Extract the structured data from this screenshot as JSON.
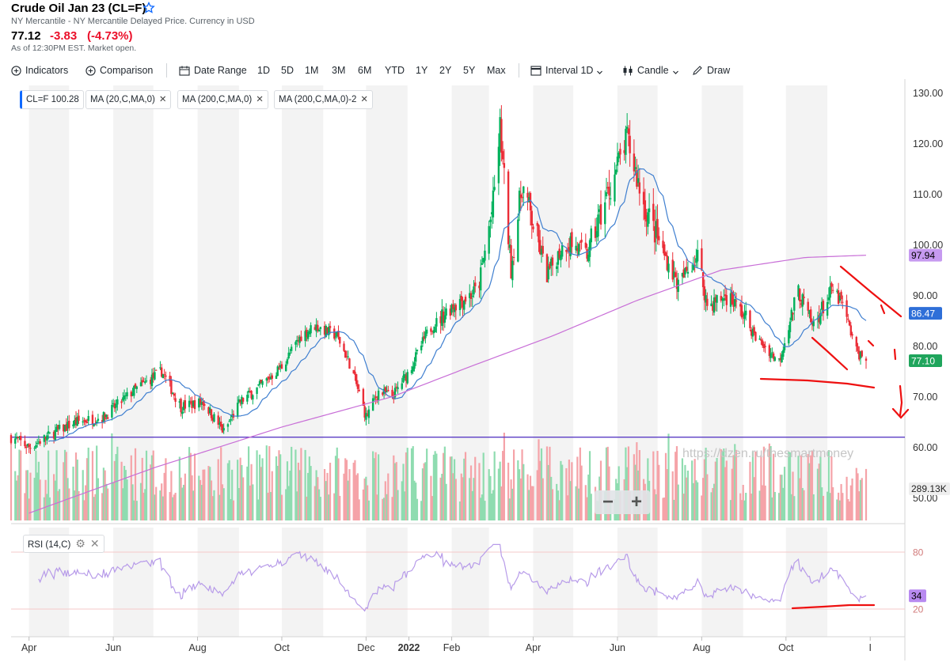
{
  "header": {
    "title": "Crude Oil Jan 23 (CL=F)",
    "exchange": "NY Mercantile - NY Mercantile Delayed Price. Currency in USD",
    "price": "77.12",
    "change": "-3.83",
    "change_pct": "(-4.73%)",
    "as_of": "As of 12:30PM EST. Market open."
  },
  "toolbar": {
    "indicators": "Indicators",
    "comparison": "Comparison",
    "date_range": "Date Range",
    "ranges": [
      "1D",
      "5D",
      "1M",
      "3M",
      "6M",
      "YTD",
      "1Y",
      "2Y",
      "5Y",
      "Max"
    ],
    "interval": "Interval",
    "interval_value": "1D",
    "chart_type": "Candle",
    "draw": "Draw"
  },
  "legend": {
    "symbol": "CL=F",
    "symbol_value": "100.28",
    "ma20": "MA (20,C,MA,0)",
    "ma200": "MA (200,C,MA,0)",
    "ma200_2": "MA (200,C,MA,0)-2",
    "rsi": "RSI (14,C)"
  },
  "watermark": "https://dzen.ru/thesmartmoney",
  "zoom": {
    "minus": "−",
    "plus": "+"
  },
  "colors": {
    "up": "#00b05a",
    "down": "#eb2d37",
    "ma20": "#3f7fd0",
    "ma200": "#c86ed7",
    "level_line": "#5b3cc4",
    "rsi": "#b79be9",
    "annotation": "#ee1010",
    "label_ma200": "#c69af0",
    "label_ma20": "#2e6fd8",
    "label_last": "#1fa55c",
    "label_vol": "#eeeeee",
    "label_rsi": "#b88af0"
  },
  "icons": [
    "plus-circle-icon",
    "calendar-icon",
    "interval-icon",
    "candlestick-icon",
    "pen-icon",
    "star-icon",
    "chevron-down-icon",
    "close-icon",
    "gear-icon"
  ],
  "chart_data": {
    "type": "candlestick",
    "x_tick_labels": [
      "Apr",
      "Jun",
      "Aug",
      "Oct",
      "Dec",
      "2022",
      "Feb",
      "Apr",
      "Jun",
      "Aug",
      "Oct",
      "I"
    ],
    "y_ticks": [
      "130.00",
      "120.00",
      "110.00",
      "100.00",
      "90.00",
      "80.00",
      "70.00",
      "60.00",
      "50.00"
    ],
    "ylim": [
      50,
      130
    ],
    "price_labels": {
      "ma200_2": "97.94",
      "ma20": "86.47",
      "last": "77.10",
      "volume": "289.13K",
      "rsi": "34"
    },
    "rsi_ticks": [
      "80",
      "20"
    ],
    "horizontal_level": 62,
    "close_anchors": [
      [
        "Mar 20, 2021",
        62
      ],
      [
        "Apr 1, 2021",
        60
      ],
      [
        "Apr 20, 2021",
        63
      ],
      [
        "May 5, 2021",
        65
      ],
      [
        "May 25, 2021",
        66
      ],
      [
        "Jun 15, 2021",
        71
      ],
      [
        "Jul 6, 2021",
        75
      ],
      [
        "Jul 20, 2021",
        68
      ],
      [
        "Aug 5, 2021",
        69
      ],
      [
        "Aug 20, 2021",
        63
      ],
      [
        "Sep 1, 2021",
        69
      ],
      [
        "Sep 15, 2021",
        72
      ],
      [
        "Oct 1, 2021",
        76
      ],
      [
        "Oct 15, 2021",
        82
      ],
      [
        "Oct 25, 2021",
        84
      ],
      [
        "Nov 10, 2021",
        82
      ],
      [
        "Nov 20, 2021",
        76
      ],
      [
        "Dec 1, 2021",
        66
      ],
      [
        "Dec 10, 2021",
        71
      ],
      [
        "Dec 20, 2021",
        70
      ],
      [
        "Jan 1, 2022",
        75
      ],
      [
        "Jan 15, 2022",
        83
      ],
      [
        "Feb 1, 2022",
        88
      ],
      [
        "Feb 20, 2022",
        91
      ],
      [
        "Mar 3, 2022",
        108
      ],
      [
        "Mar 8, 2022",
        123
      ],
      [
        "Mar 16, 2022",
        95
      ],
      [
        "Mar 24, 2022",
        112
      ],
      [
        "Apr 11, 2022",
        94
      ],
      [
        "Apr 25, 2022",
        101
      ],
      [
        "May 10, 2022",
        98
      ],
      [
        "May 25, 2022",
        110
      ],
      [
        "Jun 8, 2022",
        121
      ],
      [
        "Jun 20, 2022",
        108
      ],
      [
        "Jul 5, 2022",
        98
      ],
      [
        "Jul 15, 2022",
        92
      ],
      [
        "Jul 29, 2022",
        98
      ],
      [
        "Aug 5, 2022",
        88
      ],
      [
        "Aug 20, 2022",
        90
      ],
      [
        "Sep 1, 2022",
        86
      ],
      [
        "Sep 8, 2022",
        82
      ],
      [
        "Sep 26, 2022",
        77
      ],
      [
        "Oct 10, 2022",
        91
      ],
      [
        "Oct 20, 2022",
        84
      ],
      [
        "Nov 4, 2022",
        91
      ],
      [
        "Nov 11, 2022",
        88
      ],
      [
        "Nov 21, 2022",
        79
      ],
      [
        "Nov 28, 2022",
        77
      ]
    ],
    "ma200_anchors": [
      [
        "Apr 1, 2021",
        47
      ],
      [
        "Jul 1, 2021",
        56
      ],
      [
        "Oct 1, 2021",
        64
      ],
      [
        "Dec 20, 2021",
        70
      ],
      [
        "Feb 15, 2022",
        76
      ],
      [
        "Apr 15, 2022",
        82
      ],
      [
        "Jun 15, 2022",
        89
      ],
      [
        "Aug 15, 2022",
        95
      ],
      [
        "Oct 15, 2022",
        97.5
      ],
      [
        "Nov 28, 2022",
        97.94
      ]
    ],
    "last": {
      "ma20": 86.47,
      "close": 77.1,
      "ma200_2": 97.94
    },
    "rsi_last": 34
  }
}
